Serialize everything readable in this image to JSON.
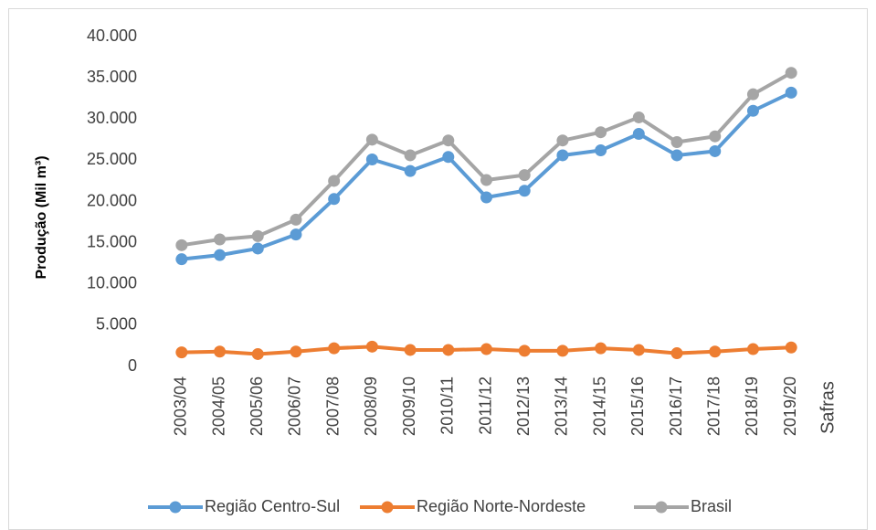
{
  "chart_data": {
    "type": "line",
    "y_label": "Produção (Mil m³)",
    "x_label": "Safras",
    "categories": [
      "2003/04",
      "2004/05",
      "2005/06",
      "2006/07",
      "2007/08",
      "2008/09",
      "2009/10",
      "2010/11",
      "2011/12",
      "2012/13",
      "2013/14",
      "2014/15",
      "2015/16",
      "2016/17",
      "2017/18",
      "2018/19",
      "2019/20"
    ],
    "series": [
      {
        "name": "Região Centro-Sul",
        "color": "#5b9bd5",
        "values": [
          13000,
          13500,
          14300,
          16000,
          20300,
          25100,
          23700,
          25400,
          20500,
          21300,
          25600,
          26200,
          28200,
          25600,
          26100,
          31000,
          33200
        ]
      },
      {
        "name": "Região Norte-Nordeste",
        "color": "#ed7d31",
        "values": [
          1700,
          1800,
          1500,
          1800,
          2200,
          2400,
          2000,
          2000,
          2100,
          1900,
          1900,
          2200,
          2000,
          1600,
          1800,
          2100,
          2300
        ]
      },
      {
        "name": "Brasil",
        "color": "#a5a5a5",
        "values": [
          14700,
          15400,
          15800,
          17800,
          22500,
          27500,
          25600,
          27400,
          22600,
          23200,
          27400,
          28400,
          30200,
          27200,
          27900,
          33000,
          35600
        ]
      }
    ],
    "ylim": [
      0,
      40000
    ],
    "yticks": [
      0,
      {
        "value": 5000,
        "label": "5.000"
      },
      {
        "value": 10000,
        "label": "10.000"
      },
      {
        "value": 15000,
        "label": "15.000"
      },
      {
        "value": 20000,
        "label": "20.000"
      },
      {
        "value": 25000,
        "label": "25.000"
      },
      {
        "value": 30000,
        "label": "30.000"
      },
      {
        "value": 35000,
        "label": "35.000"
      },
      {
        "value": 40000,
        "label": "40.000"
      }
    ],
    "grid": false,
    "legend": "bottom"
  }
}
